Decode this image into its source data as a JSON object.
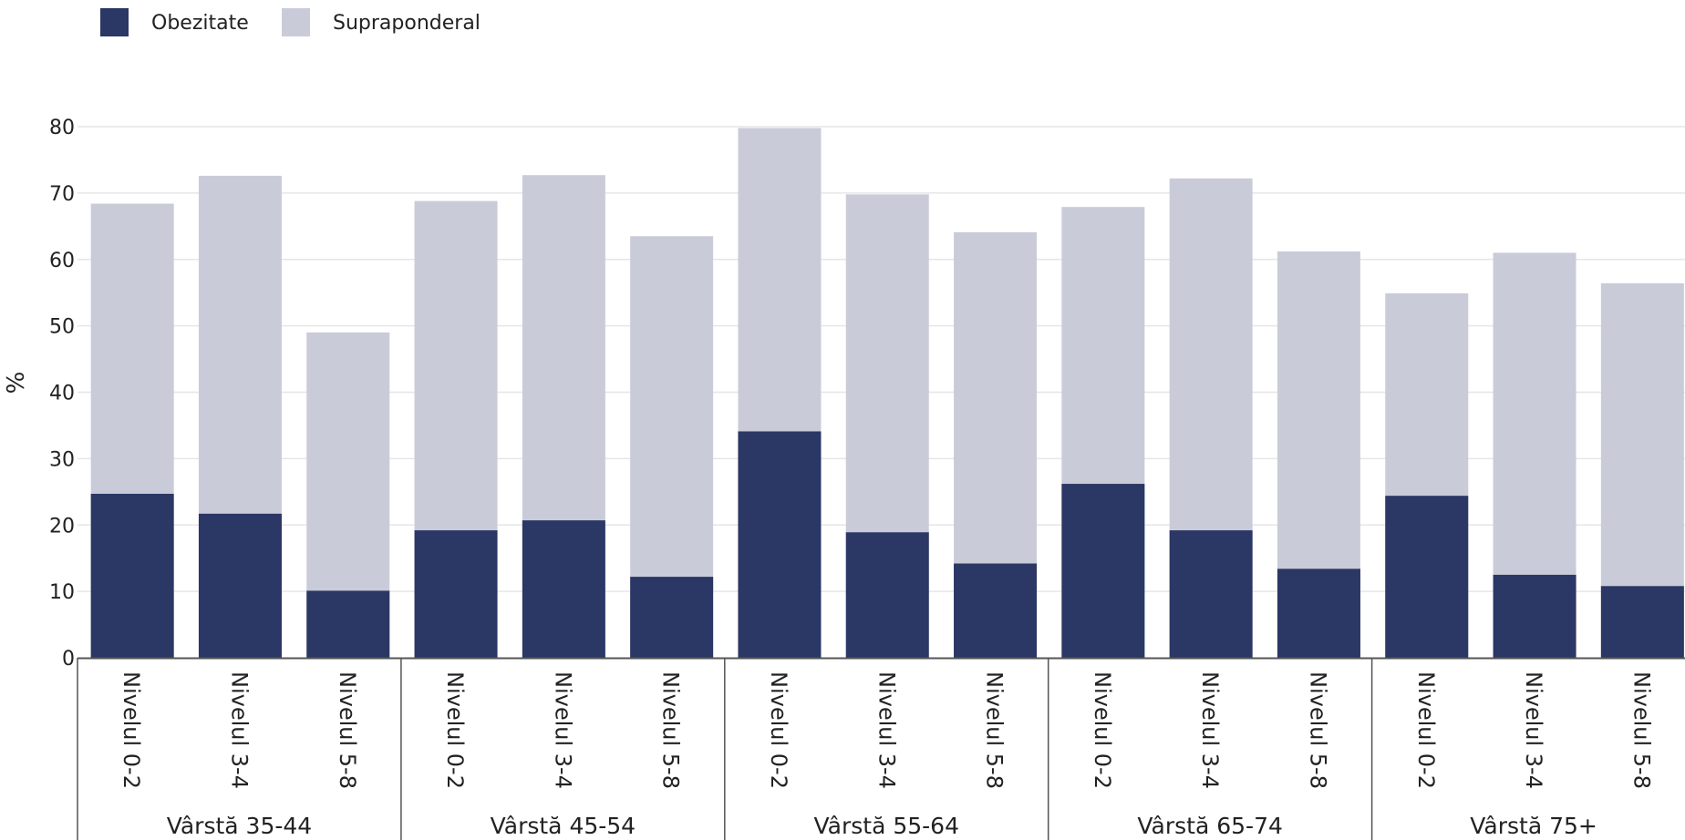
{
  "chart_data": {
    "type": "bar",
    "stacked": false,
    "overlapped": true,
    "ylabel": "%",
    "ylim": [
      0,
      80
    ],
    "yticks": [
      0,
      10,
      20,
      30,
      40,
      50,
      60,
      70,
      80
    ],
    "grid": true,
    "legend_position": "top-left",
    "colors": {
      "obezitate": "#2b3764",
      "supraponderal": "#c9ccd8"
    },
    "series": [
      {
        "name": "Obezitate",
        "key": "obezitate"
      },
      {
        "name": "Supraponderal",
        "key": "supraponderal"
      }
    ],
    "groups": [
      {
        "label": "Vârstă 35-44",
        "bars": [
          {
            "label": "Nivelul 0-2",
            "obezitate": 24.7,
            "supraponderal": 68.4
          },
          {
            "label": "Nivelul 3-4",
            "obezitate": 21.7,
            "supraponderal": 72.6
          },
          {
            "label": "Nivelul 5-8",
            "obezitate": 10.1,
            "supraponderal": 49.0
          }
        ]
      },
      {
        "label": "Vârstă 45-54",
        "bars": [
          {
            "label": "Nivelul 0-2",
            "obezitate": 19.2,
            "supraponderal": 68.8
          },
          {
            "label": "Nivelul 3-4",
            "obezitate": 20.7,
            "supraponderal": 72.7
          },
          {
            "label": "Nivelul 5-8",
            "obezitate": 12.2,
            "supraponderal": 63.5
          }
        ]
      },
      {
        "label": "Vârstă 55-64",
        "bars": [
          {
            "label": "Nivelul 0-2",
            "obezitate": 34.1,
            "supraponderal": 79.8
          },
          {
            "label": "Nivelul 3-4",
            "obezitate": 18.9,
            "supraponderal": 69.8
          },
          {
            "label": "Nivelul 5-8",
            "obezitate": 14.2,
            "supraponderal": 64.1
          }
        ]
      },
      {
        "label": "Vârstă 65-74",
        "bars": [
          {
            "label": "Nivelul 0-2",
            "obezitate": 26.2,
            "supraponderal": 67.9
          },
          {
            "label": "Nivelul 3-4",
            "obezitate": 19.2,
            "supraponderal": 72.2
          },
          {
            "label": "Nivelul 5-8",
            "obezitate": 13.4,
            "supraponderal": 61.2
          }
        ]
      },
      {
        "label": "Vârstă 75+",
        "bars": [
          {
            "label": "Nivelul 0-2",
            "obezitate": 24.4,
            "supraponderal": 54.9
          },
          {
            "label": "Nivelul 3-4",
            "obezitate": 12.5,
            "supraponderal": 61.0
          },
          {
            "label": "Nivelul 5-8",
            "obezitate": 10.8,
            "supraponderal": 56.4
          }
        ]
      }
    ]
  }
}
